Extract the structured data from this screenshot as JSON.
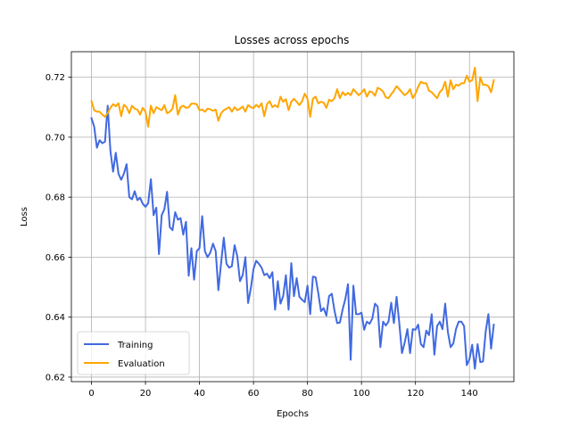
{
  "chart_data": {
    "type": "line",
    "title": "Losses across epochs",
    "xlabel": "Epochs",
    "ylabel": "Loss",
    "xlim": [
      -7.45,
      156.45
    ],
    "ylim": [
      0.6185,
      0.7285
    ],
    "xticks": [
      0,
      20,
      40,
      60,
      80,
      100,
      120,
      140
    ],
    "yticks": [
      0.62,
      0.64,
      0.66,
      0.68,
      0.7,
      0.72
    ],
    "ytick_labels": [
      "0.62",
      "0.64",
      "0.66",
      "0.68",
      "0.70",
      "0.72"
    ],
    "grid": true,
    "legend_position": "lower-left",
    "series": [
      {
        "name": "Training",
        "color": "#4169e1",
        "values": [
          0.7063,
          0.7035,
          0.6965,
          0.699,
          0.698,
          0.6985,
          0.7105,
          0.6955,
          0.6885,
          0.6948,
          0.6878,
          0.6858,
          0.6878,
          0.691,
          0.68,
          0.6793,
          0.682,
          0.679,
          0.6798,
          0.6778,
          0.6768,
          0.678,
          0.686,
          0.674,
          0.6765,
          0.661,
          0.674,
          0.676,
          0.6818,
          0.67,
          0.669,
          0.675,
          0.6725,
          0.673,
          0.6675,
          0.6718,
          0.6538,
          0.663,
          0.6525,
          0.662,
          0.663,
          0.6737,
          0.662,
          0.66,
          0.6615,
          0.6645,
          0.662,
          0.649,
          0.658,
          0.6665,
          0.6578,
          0.6565,
          0.657,
          0.664,
          0.6603,
          0.652,
          0.654,
          0.66,
          0.6447,
          0.6495,
          0.656,
          0.6588,
          0.6578,
          0.6565,
          0.654,
          0.6545,
          0.653,
          0.655,
          0.6425,
          0.652,
          0.6445,
          0.647,
          0.654,
          0.6425,
          0.658,
          0.647,
          0.653,
          0.6468,
          0.6458,
          0.645,
          0.6505,
          0.641,
          0.6535,
          0.6533,
          0.648,
          0.642,
          0.643,
          0.6405,
          0.647,
          0.6478,
          0.6422,
          0.638,
          0.6382,
          0.6425,
          0.646,
          0.651,
          0.6258,
          0.6505,
          0.641,
          0.641,
          0.6415,
          0.6358,
          0.6385,
          0.6378,
          0.6395,
          0.6445,
          0.6435,
          0.63,
          0.6385,
          0.6372,
          0.6385,
          0.6448,
          0.638,
          0.6468,
          0.638,
          0.628,
          0.6315,
          0.636,
          0.628,
          0.636,
          0.6358,
          0.6375,
          0.631,
          0.63,
          0.6355,
          0.634,
          0.641,
          0.6275,
          0.637,
          0.6385,
          0.636,
          0.6445,
          0.635,
          0.63,
          0.6312,
          0.636,
          0.6385,
          0.6385,
          0.637,
          0.624,
          0.626,
          0.6308,
          0.6228,
          0.631,
          0.625,
          0.6252,
          0.6352,
          0.641,
          0.6295,
          0.6375
        ]
      },
      {
        "name": "Evaluation",
        "color": "#ffa500",
        "values": [
          0.712,
          0.709,
          0.7085,
          0.7085,
          0.7075,
          0.7068,
          0.708,
          0.7098,
          0.711,
          0.7103,
          0.7113,
          0.707,
          0.7108,
          0.71,
          0.708,
          0.7105,
          0.7095,
          0.7092,
          0.7075,
          0.7098,
          0.7085,
          0.7035,
          0.7105,
          0.708,
          0.71,
          0.7095,
          0.709,
          0.7107,
          0.708,
          0.7085,
          0.7095,
          0.714,
          0.7075,
          0.71,
          0.7105,
          0.7098,
          0.71,
          0.7112,
          0.7112,
          0.711,
          0.709,
          0.7092,
          0.7085,
          0.7095,
          0.7093,
          0.7088,
          0.7092,
          0.7055,
          0.708,
          0.709,
          0.7095,
          0.71,
          0.7085,
          0.71,
          0.709,
          0.7095,
          0.7102,
          0.7085,
          0.7107,
          0.71,
          0.7097,
          0.7108,
          0.71,
          0.7113,
          0.707,
          0.711,
          0.712,
          0.71,
          0.7107,
          0.71,
          0.7135,
          0.7118,
          0.7127,
          0.709,
          0.7118,
          0.7128,
          0.7118,
          0.7107,
          0.712,
          0.7145,
          0.7128,
          0.7068,
          0.7128,
          0.7135,
          0.7113,
          0.7118,
          0.7115,
          0.7098,
          0.7125,
          0.712,
          0.713,
          0.716,
          0.713,
          0.715,
          0.714,
          0.7148,
          0.714,
          0.716,
          0.715,
          0.714,
          0.7148,
          0.716,
          0.7135,
          0.7153,
          0.715,
          0.7138,
          0.7165,
          0.716,
          0.7152,
          0.7133,
          0.713,
          0.7143,
          0.7155,
          0.717,
          0.716,
          0.715,
          0.714,
          0.7147,
          0.716,
          0.713,
          0.7145,
          0.7168,
          0.7185,
          0.718,
          0.718,
          0.7155,
          0.715,
          0.714,
          0.713,
          0.715,
          0.716,
          0.7185,
          0.7135,
          0.719,
          0.716,
          0.7175,
          0.7172,
          0.718,
          0.718,
          0.7205,
          0.7185,
          0.719,
          0.7232,
          0.712,
          0.72,
          0.7175,
          0.7175,
          0.717,
          0.715,
          0.719
        ]
      }
    ]
  }
}
